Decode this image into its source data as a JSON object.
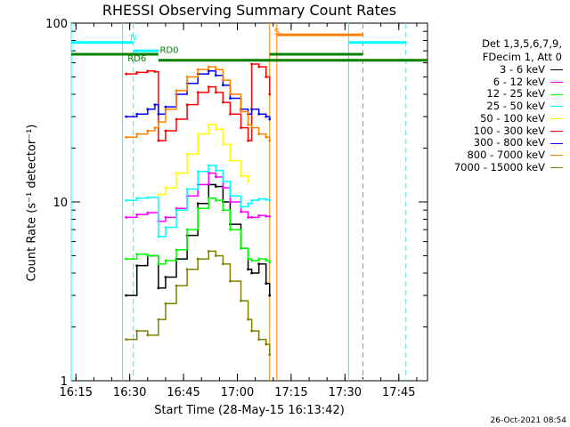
{
  "chart_data": {
    "type": "line",
    "title": "RHESSI Observing Summary Count Rates",
    "xlabel": "Start Time (28-May-15 16:13:42)",
    "ylabel": "Count Rate (s⁻¹ detector⁻¹)",
    "yscale": "log",
    "ylim": [
      1,
      100
    ],
    "xlim": [
      "16:13:42",
      "17:53:00"
    ],
    "x_ticks": [
      "16:15",
      "16:30",
      "16:45",
      "17:00",
      "17:15",
      "17:30",
      "17:45"
    ],
    "y_ticks": [
      "1",
      "10",
      "100"
    ],
    "grid": false,
    "legend_position": "right",
    "legend_header": [
      "Det 1,3,5,6,7,9,",
      "FDecim 1, Att 0"
    ],
    "timestamp": "26-Oct-2021 08:54",
    "series": [
      {
        "name": "3 - 6 keV",
        "color": "#000000",
        "points": [
          [
            "16:29",
            3.0
          ],
          [
            "16:32",
            4.4
          ],
          [
            "16:35",
            5.0
          ],
          [
            "16:38",
            3.3
          ],
          [
            "16:40",
            3.8
          ],
          [
            "16:43",
            4.8
          ],
          [
            "16:46",
            6.5
          ],
          [
            "16:49",
            9.8
          ],
          [
            "16:52",
            12.5
          ],
          [
            "16:54",
            12.2
          ],
          [
            "16:56",
            10.0
          ],
          [
            "16:58",
            7.5
          ],
          [
            "17:01",
            5.5
          ],
          [
            "17:03",
            4.2
          ],
          [
            "17:04",
            4.0
          ],
          [
            "17:06",
            4.5
          ],
          [
            "17:08",
            3.5
          ],
          [
            "17:09",
            3.0
          ]
        ]
      },
      {
        "name": "6 - 12 keV",
        "color": "#ff00ff",
        "points": [
          [
            "16:29",
            8.2
          ],
          [
            "16:32",
            8.5
          ],
          [
            "16:35",
            8.7
          ],
          [
            "16:38",
            7.8
          ],
          [
            "16:40",
            8.2
          ],
          [
            "16:43",
            9.2
          ],
          [
            "16:46",
            10.8
          ],
          [
            "16:49",
            12.5
          ],
          [
            "16:52",
            14.5
          ],
          [
            "16:54",
            13.8
          ],
          [
            "16:56",
            12.0
          ],
          [
            "16:58",
            10.0
          ],
          [
            "17:01",
            8.8
          ],
          [
            "17:03",
            8.2
          ],
          [
            "17:04",
            8.2
          ],
          [
            "17:06",
            8.4
          ],
          [
            "17:08",
            8.3
          ],
          [
            "17:09",
            8.3
          ]
        ]
      },
      {
        "name": "12 - 25 keV",
        "color": "#00ff00",
        "points": [
          [
            "16:29",
            4.8
          ],
          [
            "16:32",
            5.1
          ],
          [
            "16:35",
            5.0
          ],
          [
            "16:38",
            4.5
          ],
          [
            "16:40",
            4.7
          ],
          [
            "16:43",
            5.4
          ],
          [
            "16:46",
            7.0
          ],
          [
            "16:49",
            9.2
          ],
          [
            "16:52",
            10.5
          ],
          [
            "16:54",
            10.2
          ],
          [
            "16:56",
            9.0
          ],
          [
            "16:58",
            7.0
          ],
          [
            "17:01",
            5.5
          ],
          [
            "17:03",
            4.8
          ],
          [
            "17:04",
            4.7
          ],
          [
            "17:06",
            4.8
          ],
          [
            "17:08",
            4.7
          ],
          [
            "17:09",
            4.6
          ]
        ]
      },
      {
        "name": "25 - 50 keV",
        "color": "#00ffff",
        "points": [
          [
            "16:29",
            10.2
          ],
          [
            "16:32",
            10.5
          ],
          [
            "16:35",
            10.6
          ],
          [
            "16:38",
            6.4
          ],
          [
            "16:40",
            7.2
          ],
          [
            "16:43",
            9.0
          ],
          [
            "16:46",
            11.8
          ],
          [
            "16:49",
            14.8
          ],
          [
            "16:52",
            16.0
          ],
          [
            "16:54",
            15.0
          ],
          [
            "16:56",
            13.0
          ],
          [
            "16:58",
            10.8
          ],
          [
            "17:01",
            9.4
          ],
          [
            "17:03",
            9.8
          ],
          [
            "17:04",
            10.2
          ],
          [
            "17:06",
            10.4
          ],
          [
            "17:08",
            10.3
          ],
          [
            "17:09",
            10.2
          ]
        ]
      },
      {
        "name": "50 - 100 keV",
        "color": "#ffff00",
        "points": [
          [
            "16:38",
            11.0
          ],
          [
            "16:40",
            12.0
          ],
          [
            "16:43",
            14.5
          ],
          [
            "16:46",
            18.5
          ],
          [
            "16:49",
            24.0
          ],
          [
            "16:52",
            27.0
          ],
          [
            "16:54",
            25.5
          ],
          [
            "16:56",
            21.0
          ],
          [
            "16:58",
            17.0
          ],
          [
            "17:01",
            14.0
          ],
          [
            "17:03",
            13.0
          ]
        ]
      },
      {
        "name": "100 - 300 keV",
        "color": "#ff0000",
        "points": [
          [
            "16:29",
            52.0
          ],
          [
            "16:32",
            53.0
          ],
          [
            "16:35",
            54.0
          ],
          [
            "16:37",
            53.5
          ],
          [
            "16:38",
            22.0
          ],
          [
            "16:40",
            25.0
          ],
          [
            "16:43",
            29.0
          ],
          [
            "16:46",
            35.0
          ],
          [
            "16:49",
            41.0
          ],
          [
            "16:52",
            44.0
          ],
          [
            "16:54",
            41.0
          ],
          [
            "16:56",
            36.0
          ],
          [
            "16:58",
            31.0
          ],
          [
            "17:01",
            26.0
          ],
          [
            "17:03",
            22.0
          ],
          [
            "17:04",
            59.0
          ],
          [
            "17:06",
            57.0
          ],
          [
            "17:08",
            50.0
          ],
          [
            "17:09",
            40.0
          ]
        ]
      },
      {
        "name": "300 - 800 keV",
        "color": "#0000ff",
        "points": [
          [
            "16:29",
            30.0
          ],
          [
            "16:32",
            31.0
          ],
          [
            "16:35",
            33.0
          ],
          [
            "16:37",
            35.0
          ],
          [
            "16:38",
            31.0
          ],
          [
            "16:40",
            34.0
          ],
          [
            "16:43",
            40.0
          ],
          [
            "16:46",
            46.0
          ],
          [
            "16:49",
            52.0
          ],
          [
            "16:52",
            54.0
          ],
          [
            "16:54",
            51.0
          ],
          [
            "16:56",
            45.0
          ],
          [
            "16:58",
            38.0
          ],
          [
            "17:01",
            33.0
          ],
          [
            "17:03",
            31.0
          ],
          [
            "17:04",
            33.0
          ],
          [
            "17:06",
            31.0
          ],
          [
            "17:08",
            30.0
          ],
          [
            "17:09",
            29.0
          ]
        ]
      },
      {
        "name": "800 - 7000 keV",
        "color": "#ff8000",
        "points": [
          [
            "16:29",
            23.0
          ],
          [
            "16:32",
            24.0
          ],
          [
            "16:35",
            25.0
          ],
          [
            "16:37",
            26.0
          ],
          [
            "16:38",
            28.0
          ],
          [
            "16:40",
            33.0
          ],
          [
            "16:43",
            42.0
          ],
          [
            "16:46",
            50.0
          ],
          [
            "16:49",
            55.0
          ],
          [
            "16:52",
            57.0
          ],
          [
            "16:54",
            55.0
          ],
          [
            "16:56",
            48.0
          ],
          [
            "16:58",
            40.0
          ],
          [
            "17:01",
            32.0
          ],
          [
            "17:03",
            27.0
          ],
          [
            "17:04",
            26.0
          ],
          [
            "17:06",
            24.0
          ],
          [
            "17:08",
            23.0
          ],
          [
            "17:09",
            22.0
          ]
        ]
      },
      {
        "name": "7000 - 15000 keV",
        "color": "#808000",
        "points": [
          [
            "16:29",
            1.7
          ],
          [
            "16:32",
            1.9
          ],
          [
            "16:35",
            1.8
          ],
          [
            "16:38",
            2.2
          ],
          [
            "16:40",
            2.7
          ],
          [
            "16:43",
            3.4
          ],
          [
            "16:46",
            4.2
          ],
          [
            "16:49",
            4.8
          ],
          [
            "16:52",
            5.3
          ],
          [
            "16:54",
            5.0
          ],
          [
            "16:56",
            4.5
          ],
          [
            "16:58",
            3.6
          ],
          [
            "17:01",
            2.8
          ],
          [
            "17:03",
            2.2
          ],
          [
            "17:04",
            1.9
          ],
          [
            "17:06",
            1.7
          ],
          [
            "17:08",
            1.6
          ],
          [
            "17:09",
            1.4
          ]
        ]
      }
    ],
    "annotations": {
      "labels": [
        {
          "text": "N",
          "color": "#00ffff",
          "x": "16:31",
          "y": 80
        },
        {
          "text": "S",
          "color": "#ff8000",
          "x": "17:11",
          "y": 86
        },
        {
          "text": "RD6",
          "color": "#008000",
          "x": "16:32",
          "y": 61
        },
        {
          "text": "RD0",
          "color": "#008000",
          "x": "16:41",
          "y": 68
        }
      ],
      "vertical_lines": [
        {
          "x": "16:13:42",
          "color": "#00ffff",
          "style": "solid"
        },
        {
          "x": "16:28",
          "color": "#00ffff",
          "style": "solid"
        },
        {
          "x": "16:31",
          "color": "#00ffff",
          "style": "dashed"
        },
        {
          "x": "17:09",
          "color": "#ff8000",
          "style": "solid"
        },
        {
          "x": "17:11",
          "color": "#ff8000",
          "style": "solid"
        },
        {
          "x": "17:31",
          "color": "#00ffff",
          "style": "solid"
        },
        {
          "x": "17:35",
          "color": "#ff8000",
          "style": "dashed"
        },
        {
          "x": "17:47",
          "color": "#00ffff",
          "style": "dashed"
        }
      ],
      "bars": [
        {
          "color": "#00ffff",
          "y": 78,
          "segments": [
            [
              "16:13:42",
              "16:31"
            ],
            [
              "17:31",
              "17:47"
            ]
          ]
        },
        {
          "color": "#00ffff",
          "y": 70,
          "segments": [
            [
              "16:31",
              "16:38"
            ]
          ]
        },
        {
          "color": "#ff8000",
          "y": 86,
          "segments": [
            [
              "17:11",
              "17:35"
            ]
          ]
        },
        {
          "color": "#008000",
          "y": 67,
          "segments": [
            [
              "16:13:42",
              "16:38"
            ]
          ]
        },
        {
          "color": "#008000",
          "y": 62,
          "segments": [
            [
              "16:38",
              "17:35"
            ],
            [
              "17:35",
              "17:53"
            ]
          ]
        },
        {
          "color": "#008000",
          "y": 67,
          "segments": [
            [
              "17:09",
              "17:35"
            ]
          ]
        }
      ]
    }
  }
}
